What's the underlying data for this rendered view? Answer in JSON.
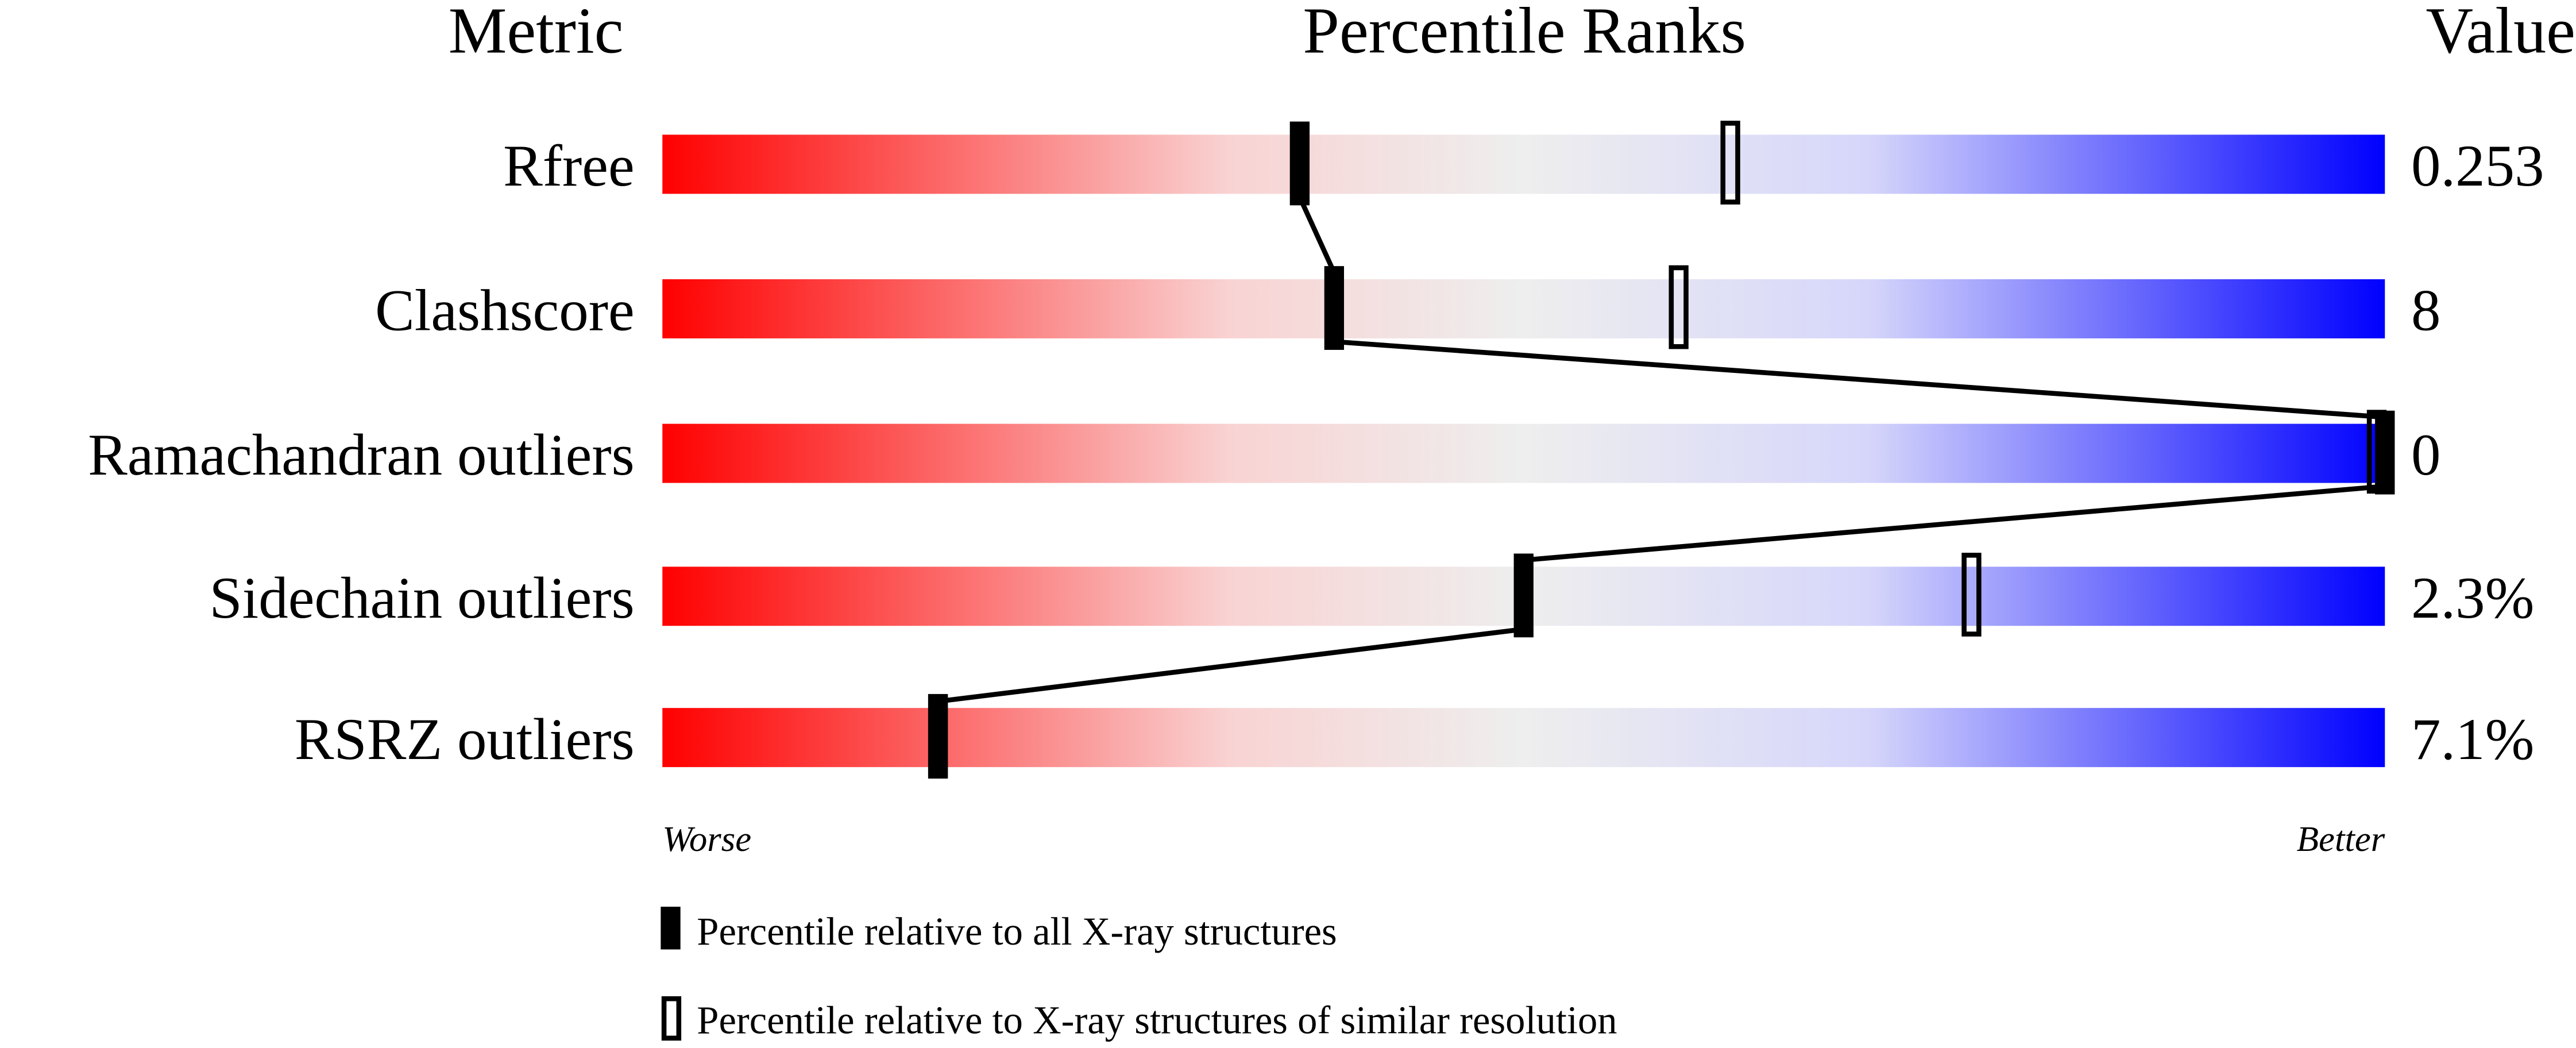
{
  "chart_data": {
    "type": "percentile-bar",
    "headers": {
      "metric": "Metric",
      "ranks": "Percentile Ranks",
      "value": "Value"
    },
    "xlim": [
      0,
      100
    ],
    "axis_labels": {
      "left": "Worse",
      "right": "Better"
    },
    "gradient_colors": [
      "#ff0000",
      "#f9d3d3",
      "#eeeeee",
      "#d6d6fb",
      "#0000ff"
    ],
    "rows": [
      {
        "metric": "Rfree",
        "value": "0.253",
        "percentile_all": 37,
        "percentile_similar": 62
      },
      {
        "metric": "Clashscore",
        "value": "8",
        "percentile_all": 39,
        "percentile_similar": 59
      },
      {
        "metric": "Ramachandran outliers",
        "value": "0",
        "percentile_all": 100,
        "percentile_similar": 100
      },
      {
        "metric": "Sidechain outliers",
        "value": "2.3%",
        "percentile_all": 50,
        "percentile_similar": 76
      },
      {
        "metric": "RSRZ outliers",
        "value": "7.1%",
        "percentile_all": 16,
        "percentile_similar": 16
      }
    ],
    "legend": [
      {
        "marker": "filled",
        "label": "Percentile relative to all X-ray structures"
      },
      {
        "marker": "hollow",
        "label": "Percentile relative to X-ray structures of similar resolution"
      }
    ]
  }
}
